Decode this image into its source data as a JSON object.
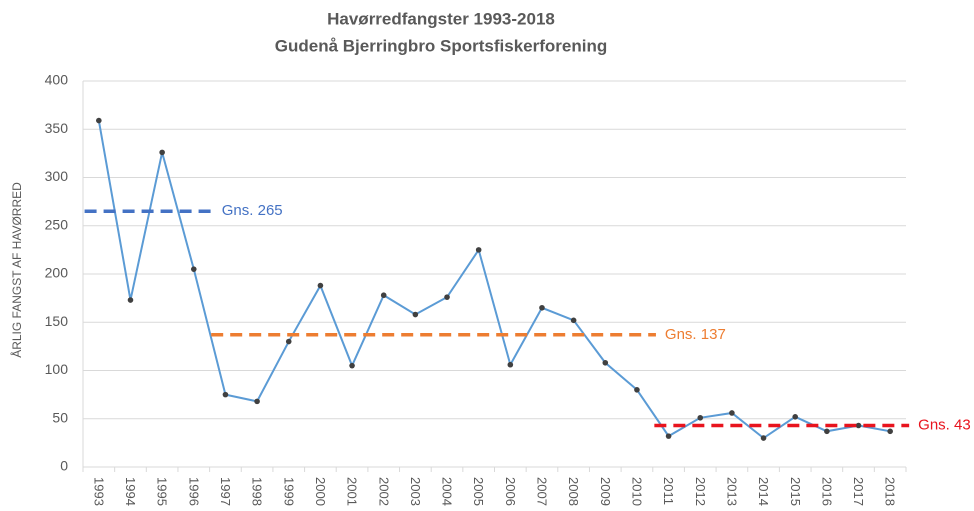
{
  "chart_data": {
    "type": "line",
    "title": "Havørredfangster 1993-2018",
    "subtitle": "Gudenå Bjerringbro Sportsfiskerforening",
    "y_label": "ÅRLIG FANGST AF HAVØRRED",
    "categories": [
      "1993",
      "1994",
      "1995",
      "1996",
      "1997",
      "1998",
      "1999",
      "2000",
      "2001",
      "2002",
      "2003",
      "2004",
      "2005",
      "2006",
      "2007",
      "2008",
      "2009",
      "2010",
      "2011",
      "2012",
      "2013",
      "2014",
      "2015",
      "2016",
      "2017",
      "2018"
    ],
    "values": [
      359,
      173,
      326,
      205,
      75,
      68,
      130,
      188,
      105,
      178,
      158,
      176,
      225,
      106,
      165,
      152,
      108,
      80,
      32,
      51,
      56,
      30,
      52,
      37,
      43,
      37
    ],
    "color": "#5b9bd5",
    "marker_color": "#404040",
    "ylim": [
      0,
      400
    ],
    "yticks": [
      0,
      50,
      100,
      150,
      200,
      250,
      300,
      350,
      400
    ],
    "grid": true,
    "averages": [
      {
        "label": "Gns. 265",
        "value": 265,
        "from": "1993",
        "to": "1996",
        "color": "#4472c4"
      },
      {
        "label": "Gns. 137",
        "value": 137,
        "from": "1997",
        "to": "2010",
        "color": "#ed7d31"
      },
      {
        "label": "Gns. 43",
        "value": 43,
        "from": "2011",
        "to": "2018",
        "color": "#e8141e"
      }
    ]
  }
}
